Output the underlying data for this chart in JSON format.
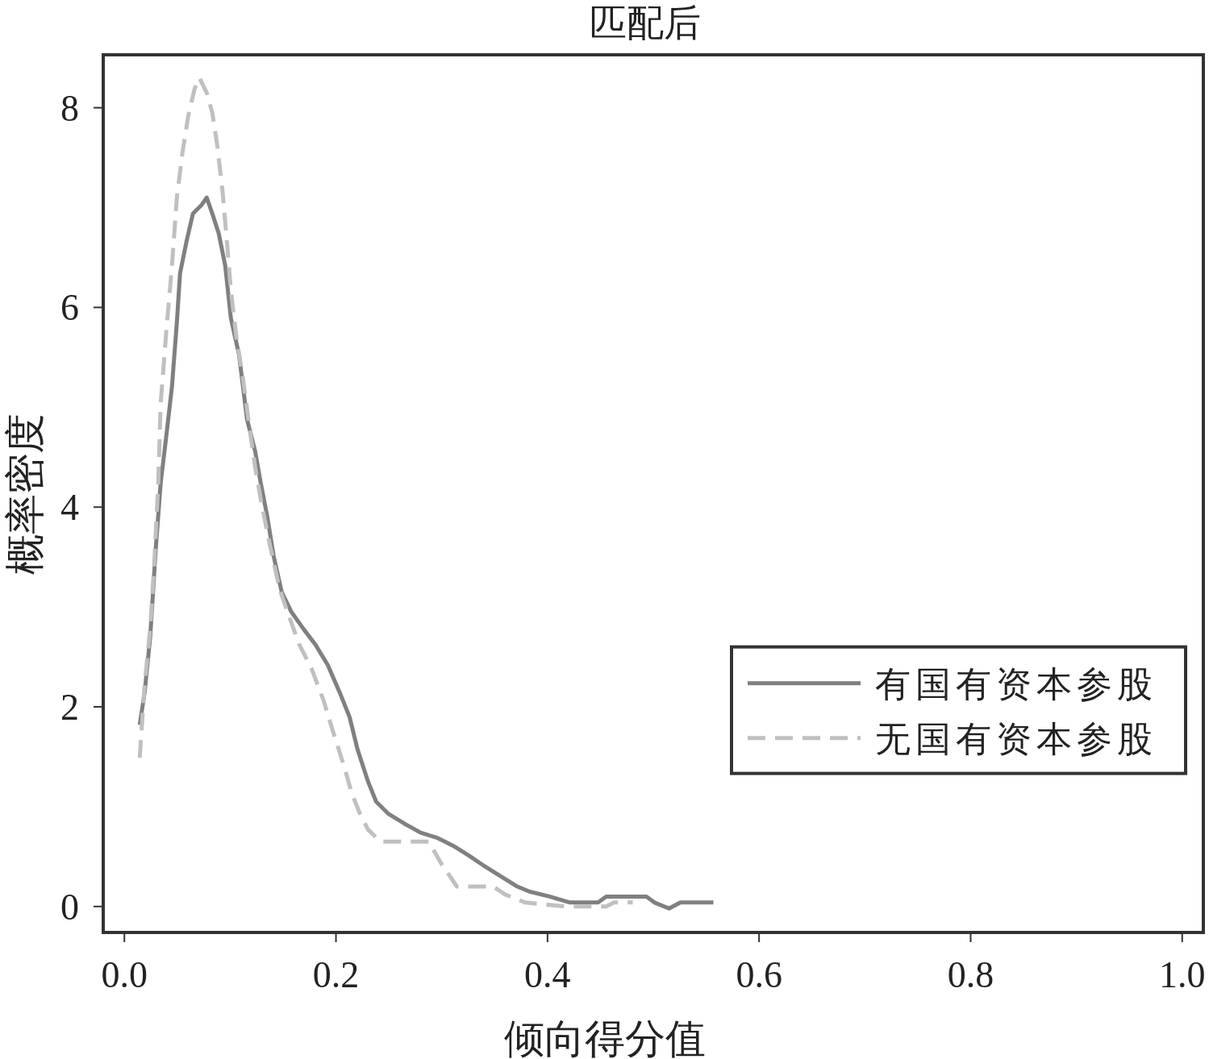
{
  "chart_data": {
    "type": "line",
    "title": "匹配后",
    "xlabel": "倾向得分值",
    "ylabel": "概率密度",
    "xlim": [
      -0.02,
      1.02
    ],
    "ylim": [
      -0.26,
      8.53
    ],
    "xticks": [
      {
        "value": 0,
        "label": "0.0"
      },
      0.2,
      0.4,
      0.6,
      0.8,
      {
        "value": 1,
        "label": "1.0"
      }
    ],
    "yticks": [
      0,
      2,
      4,
      6,
      8
    ],
    "grid": false,
    "legend": "right",
    "marker": "none",
    "series": [
      {
        "name": "有国有资本参股",
        "color": "#808080",
        "line_style": "solid",
        "x": [
          0.0145,
          0.0191,
          0.0244,
          0.0297,
          0.0343,
          0.0397,
          0.045,
          0.0496,
          0.0526,
          0.0587,
          0.0648,
          0.0725,
          0.0778,
          0.0831,
          0.0892,
          0.0953,
          0.1007,
          0.1083,
          0.1121,
          0.1159,
          0.1236,
          0.1289,
          0.135,
          0.1411,
          0.1487,
          0.1579,
          0.1693,
          0.1808,
          0.1922,
          0.2037,
          0.2128,
          0.2205,
          0.2304,
          0.238,
          0.2494,
          0.2647,
          0.28,
          0.2952,
          0.3105,
          0.3257,
          0.341,
          0.3562,
          0.3715,
          0.3829,
          0.402,
          0.4211,
          0.4478,
          0.4554,
          0.4935,
          0.5011,
          0.5149,
          0.5256,
          0.5568
        ],
        "values": [
          1.82,
          2.14,
          2.7,
          3.59,
          4.24,
          4.72,
          5.21,
          5.85,
          6.34,
          6.66,
          6.94,
          7.02,
          7.1,
          6.94,
          6.74,
          6.42,
          5.89,
          5.53,
          5.21,
          4.88,
          4.56,
          4.24,
          3.91,
          3.51,
          3.15,
          2.95,
          2.78,
          2.62,
          2.42,
          2.14,
          1.9,
          1.57,
          1.25,
          1.05,
          0.93,
          0.83,
          0.74,
          0.69,
          0.61,
          0.51,
          0.4,
          0.3,
          0.2,
          0.15,
          0.1,
          0.04,
          0.04,
          0.1,
          0.1,
          0.04,
          -0.02,
          0.04,
          0.04
        ]
      },
      {
        "name": "无国有资本参股",
        "color": "#c0c0c0",
        "line_style": "dashed",
        "x": [
          0.0145,
          0.0191,
          0.0244,
          0.0282,
          0.032,
          0.0343,
          0.0397,
          0.045,
          0.0496,
          0.0549,
          0.0602,
          0.0664,
          0.0709,
          0.0778,
          0.0831,
          0.0877,
          0.093,
          0.0969,
          0.1007,
          0.106,
          0.1121,
          0.1182,
          0.1236,
          0.1289,
          0.1365,
          0.1465,
          0.1541,
          0.1655,
          0.177,
          0.1884,
          0.1976,
          0.2075,
          0.2151,
          0.2227,
          0.2304,
          0.2418,
          0.2647,
          0.2876,
          0.299,
          0.3143,
          0.3486,
          0.36,
          0.379,
          0.4172,
          0.4554,
          0.463,
          0.4806
        ],
        "values": [
          1.49,
          2.22,
          2.78,
          3.43,
          4.24,
          5.04,
          5.77,
          6.42,
          7.1,
          7.55,
          7.91,
          8.19,
          8.3,
          8.15,
          7.95,
          7.63,
          7.14,
          6.66,
          6.17,
          5.69,
          5.29,
          4.8,
          4.4,
          4.08,
          3.67,
          3.19,
          2.95,
          2.62,
          2.38,
          2.06,
          1.74,
          1.41,
          1.13,
          0.93,
          0.77,
          0.65,
          0.65,
          0.65,
          0.44,
          0.2,
          0.2,
          0.12,
          0.04,
          0,
          0,
          0.04,
          0.04
        ]
      }
    ]
  }
}
